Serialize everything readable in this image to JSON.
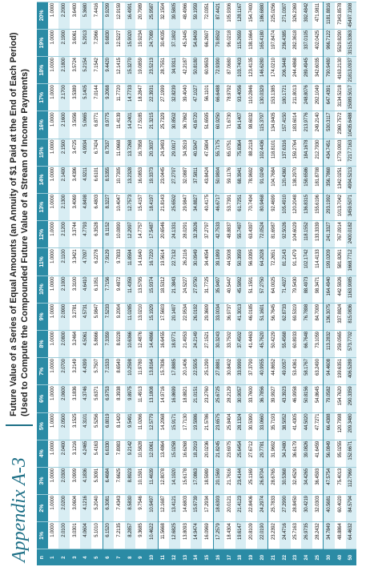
{
  "header": {
    "label": "Appendix A-3",
    "title": "Future Value of a Series of Equal Amounts (an Annuity of $1 Paid at the End of Each Period)",
    "subtitle": "(Used to Compute the Compounded Future Value of a Stream of Income Payments)"
  },
  "table": {
    "columns": [
      "n",
      "1%",
      "2%",
      "3%",
      "4%",
      "5%",
      "6%",
      "7%",
      "8%",
      "9%",
      "10%",
      "11%",
      "12%",
      "13%",
      "14%",
      "15%",
      "16%",
      "17%",
      "18%",
      "19%",
      "20%"
    ],
    "rows": [
      [
        "1",
        "1.0000",
        "1.0000",
        "1.0000",
        "1.0000",
        "1.0000",
        "1.0000",
        "1.0000",
        "1.0000",
        "1.0000",
        "1.0000",
        "1.0000",
        "1.0000",
        "1.0000",
        "1.0000",
        "1.0000",
        "1.0000",
        "1.0000",
        "1.0000",
        "1.0000",
        "1.0000"
      ],
      [
        "2",
        "2.0100",
        "2.0200",
        "2.0300",
        "2.0400",
        "2.0500",
        "2.0600",
        "2.0700",
        "2.0800",
        "2.0900",
        "2.1000",
        "2.1100",
        "2.1200",
        "2.1300",
        "2.1400",
        "2.1500",
        "2.1600",
        "2.1700",
        "2.1800",
        "2.1900",
        "2.2000"
      ],
      [
        "3",
        "3.0301",
        "3.0604",
        "3.0909",
        "3.1216",
        "3.1525",
        "3.1836",
        "3.2149",
        "3.2464",
        "3.2781",
        "3.3100",
        "3.3421",
        "3.3744",
        "3.4069",
        "3.4396",
        "3.4725",
        "3.5056",
        "3.5389",
        "3.5724",
        "3.6061",
        "3.6400"
      ],
      [
        "4",
        "4.0604",
        "4.1216",
        "4.1836",
        "4.2465",
        "4.3101",
        "4.3746",
        "4.4399",
        "4.5061",
        "4.5731",
        "4.6410",
        "4.7097",
        "4.7793",
        "4.8498",
        "4.9211",
        "4.9934",
        "5.0665",
        "5.1405",
        "5.2154",
        "5.2913",
        "5.3680"
      ],
      [
        "5",
        "5.1010",
        "5.2040",
        "5.3091",
        "5.4163",
        "5.5256",
        "5.6371",
        "5.7507",
        "5.8666",
        "5.9847",
        "6.1051",
        "6.2278",
        "6.3528",
        "6.4803",
        "6.6101",
        "6.7424",
        "6.8771",
        "7.0144",
        "7.1542",
        "7.2966",
        "7.4416"
      ],
      [
        "6",
        "6.1520",
        "6.3081",
        "6.4684",
        "6.6330",
        "6.8019",
        "6.9753",
        "7.1533",
        "7.3359",
        "7.5233",
        "7.7156",
        "7.9129",
        "8.1152",
        "8.3227",
        "8.5355",
        "8.7537",
        "8.9775",
        "9.2068",
        "9.4420",
        "9.6830",
        "9.9299"
      ],
      [
        "7",
        "7.2135",
        "7.4343",
        "7.6625",
        "7.8983",
        "8.1420",
        "8.3938",
        "8.6540",
        "8.9228",
        "9.2004",
        "9.4872",
        "9.7833",
        "10.0890",
        "10.4047",
        "10.7305",
        "11.0668",
        "11.4139",
        "11.7720",
        "12.1415",
        "12.5227",
        "12.9159"
      ],
      [
        "8",
        "8.2857",
        "8.5830",
        "8.8923",
        "9.2142",
        "9.5491",
        "9.8975",
        "10.2598",
        "10.6366",
        "11.0285",
        "11.4359",
        "11.8594",
        "12.2997",
        "12.7573",
        "13.2328",
        "13.7268",
        "14.2401",
        "14.7733",
        "15.3270",
        "15.9020",
        "16.4991"
      ],
      [
        "9",
        "9.3685",
        "9.7546",
        "10.1591",
        "10.5828",
        "11.0266",
        "11.4913",
        "11.9780",
        "12.4876",
        "13.0210",
        "13.5795",
        "14.1640",
        "14.7757",
        "15.4157",
        "16.0853",
        "16.7858",
        "17.5185",
        "18.2847",
        "19.0859",
        "19.9234",
        "20.7989"
      ],
      [
        "10",
        "10.4622",
        "10.9497",
        "11.4639",
        "12.0061",
        "12.5779",
        "13.1808",
        "13.8164",
        "14.4866",
        "15.1929",
        "15.9374",
        "16.7220",
        "17.5487",
        "18.4197",
        "19.3373",
        "20.3037",
        "21.3215",
        "22.3931",
        "23.5213",
        "24.7089",
        "25.9587"
      ],
      [
        "11",
        "11.5668",
        "12.1687",
        "12.8078",
        "13.4864",
        "14.2068",
        "14.9716",
        "15.7836",
        "16.6455",
        "17.5603",
        "18.5312",
        "19.5614",
        "20.6546",
        "21.8143",
        "23.0445",
        "24.3493",
        "25.7329",
        "27.1999",
        "28.7551",
        "30.4035",
        "32.1504"
      ],
      [
        "12",
        "12.6825",
        "13.4121",
        "14.1920",
        "15.0258",
        "15.9171",
        "16.8699",
        "17.8885",
        "18.9771",
        "20.1407",
        "21.3843",
        "22.7132",
        "24.1331",
        "25.6502",
        "27.2707",
        "29.0017",
        "30.8502",
        "32.8239",
        "34.9311",
        "37.1802",
        "39.5805"
      ],
      [
        "13",
        "13.8093",
        "14.6803",
        "15.6178",
        "16.6268",
        "17.7130",
        "18.8821",
        "20.1406",
        "21.4953",
        "22.9534",
        "24.5227",
        "26.2116",
        "28.0291",
        "29.9847",
        "32.0887",
        "34.3519",
        "36.7862",
        "39.4040",
        "42.2187",
        "45.2445",
        "48.4966"
      ],
      [
        "14",
        "14.9474",
        "15.9739",
        "17.0863",
        "18.2919",
        "19.5986",
        "21.0151",
        "22.5505",
        "24.2149",
        "26.0192",
        "27.9750",
        "30.0949",
        "32.3926",
        "34.8827",
        "37.5811",
        "40.5047",
        "43.6720",
        "47.1027",
        "50.8180",
        "54.8409",
        "59.1959"
      ],
      [
        "15",
        "16.0969",
        "17.2934",
        "18.5989",
        "20.0236",
        "21.5786",
        "23.2760",
        "25.1290",
        "27.1521",
        "29.3609",
        "31.7725",
        "34.4054",
        "37.2797",
        "40.4175",
        "43.8424",
        "47.5804",
        "51.6595",
        "56.1101",
        "60.9653",
        "66.2607",
        "72.0351"
      ],
      [
        "16",
        "17.2579",
        "18.6393",
        "20.1569",
        "21.8245",
        "23.6575",
        "25.6725",
        "27.8881",
        "30.3243",
        "33.0034",
        "35.9497",
        "39.1899",
        "42.7533",
        "46.6717",
        "50.9804",
        "55.7175",
        "60.9250",
        "66.6488",
        "72.9390",
        "79.8502",
        "87.4421"
      ],
      [
        "17",
        "18.4304",
        "20.0121",
        "21.7616",
        "23.6975",
        "25.8404",
        "28.2129",
        "30.8402",
        "33.7502",
        "36.9737",
        "40.5447",
        "44.5008",
        "48.8837",
        "53.7391",
        "59.1176",
        "65.0751",
        "71.6730",
        "78.9792",
        "87.0680",
        "96.0218",
        "105.9306"
      ],
      [
        "18",
        "19.6147",
        "21.4123",
        "23.4144",
        "25.6454",
        "28.1324",
        "30.9057",
        "33.9990",
        "37.4502",
        "41.3013",
        "45.5992",
        "50.3959",
        "55.7497",
        "61.7251",
        "68.3941",
        "75.8364",
        "84.1407",
        "93.4056",
        "103.7403",
        "115.2659",
        "128.1167"
      ],
      [
        "19",
        "20.8109",
        "22.8406",
        "25.1169",
        "27.6712",
        "30.5390",
        "33.7600",
        "37.3790",
        "41.4463",
        "46.0185",
        "51.1591",
        "56.9395",
        "63.4397",
        "70.7494",
        "78.9692",
        "88.2118",
        "98.6032",
        "110.2846",
        "123.4135",
        "138.1664",
        "154.7400"
      ],
      [
        "20",
        "22.0190",
        "24.2974",
        "26.8704",
        "29.7781",
        "33.0660",
        "36.7856",
        "40.9955",
        "45.7620",
        "51.1601",
        "57.2750",
        "64.2028",
        "72.0524",
        "80.9468",
        "91.0249",
        "102.4436",
        "115.3797",
        "130.0329",
        "146.6280",
        "165.4180",
        "186.6880"
      ],
      [
        "21",
        "23.2392",
        "25.7833",
        "28.6765",
        "31.9692",
        "35.7193",
        "39.9927",
        "44.8652",
        "50.4229",
        "56.7645",
        "64.0025",
        "72.2651",
        "81.6987",
        "92.4699",
        "104.7684",
        "118.8101",
        "134.8405",
        "153.1385",
        "174.0210",
        "197.8474",
        "225.0256"
      ],
      [
        "22",
        "24.4716",
        "27.2990",
        "30.5368",
        "34.2480",
        "38.5052",
        "43.3923",
        "49.0057",
        "55.4568",
        "62.8733",
        "71.4027",
        "81.2143",
        "92.5026",
        "105.4910",
        "120.4360",
        "137.6316",
        "157.4150",
        "180.1721",
        "206.3448",
        "236.4385",
        "271.0307"
      ],
      [
        "23",
        "25.7163",
        "28.8450",
        "32.4529",
        "36.6179",
        "41.4305",
        "46.9958",
        "53.4361",
        "60.8933",
        "69.5319",
        "79.5430",
        "91.1479",
        "104.6029",
        "120.2048",
        "138.2970",
        "159.2764",
        "183.6014",
        "211.8013",
        "244.4868",
        "282.3618",
        "326.2369"
      ],
      [
        "24",
        "26.9735",
        "30.4219",
        "34.4265",
        "39.0826",
        "44.5020",
        "50.8156",
        "58.1767",
        "66.7648",
        "76.7898",
        "88.4973",
        "102.1742",
        "118.1552",
        "136.8315",
        "158.6586",
        "184.1678",
        "213.9776",
        "248.8076",
        "289.4945",
        "337.0105",
        "392.4842"
      ],
      [
        "25",
        "28.2432",
        "32.0303",
        "36.4593",
        "41.6459",
        "47.7271",
        "54.8645",
        "63.2490",
        "73.1059",
        "84.7009",
        "98.3471",
        "114.4133",
        "133.3339",
        "155.6196",
        "181.8708",
        "212.7930",
        "249.2140",
        "292.1049",
        "342.6035",
        "402.0425",
        "471.9811"
      ],
      [
        "30",
        "34.7849",
        "40.5681",
        "47.5754",
        "56.0849",
        "66.4388",
        "79.0582",
        "94.4608",
        "113.2832",
        "136.3075",
        "164.4940",
        "199.0209",
        "241.3327",
        "293.1992",
        "356.7868",
        "434.7451",
        "530.3117",
        "647.4391",
        "790.9480",
        "966.7122",
        "1181.8816"
      ],
      [
        "40",
        "48.8864",
        "60.4020",
        "75.4013",
        "95.0255",
        "120.7998",
        "154.7620",
        "199.6351",
        "259.0565",
        "337.8824",
        "442.5926",
        "581.8261",
        "767.0914",
        "1013.7042",
        "1342.0251",
        "1779.0903",
        "2360.7572",
        "3134.5218",
        "4163.2130",
        "5529.8290",
        "7343.8578"
      ],
      [
        "50",
        "64.4632",
        "84.5794",
        "112.7969",
        "152.6671",
        "209.3480",
        "290.3359",
        "406.5289",
        "573.7702",
        "815.0836",
        "1163.9085",
        "1668.7712",
        "2400.0182",
        "3459.5071",
        "4994.5213",
        "7217.7163",
        "10435.6488",
        "15089.5017",
        "21813.0937",
        "31515.3363",
        "45497.1908"
      ]
    ]
  }
}
